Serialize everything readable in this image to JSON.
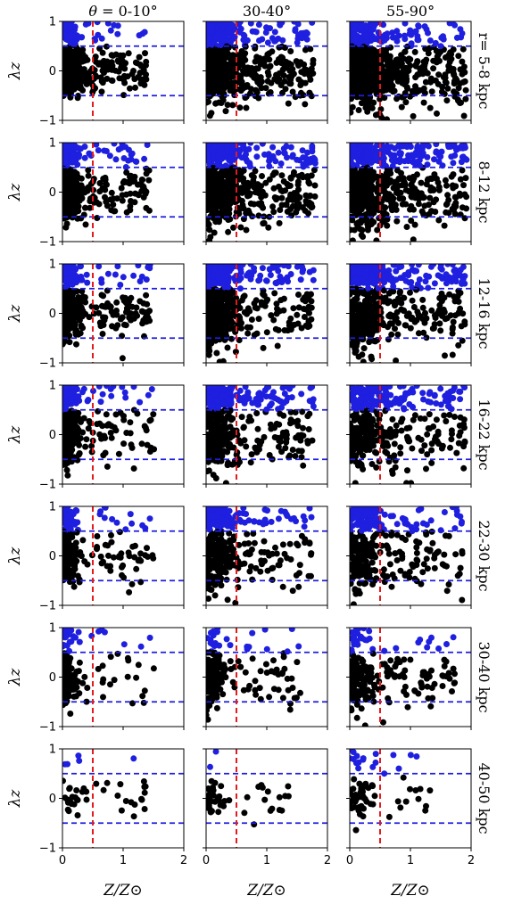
{
  "chart_data": {
    "type": "scatter",
    "grid": false,
    "columns": [
      {
        "title_prefix": "θ = ",
        "title": "0-10°"
      },
      {
        "title": "30-40°"
      },
      {
        "title": "55-90°"
      }
    ],
    "rows": [
      {
        "label": "r= 5-8 kpc"
      },
      {
        "label": "8-12 kpc"
      },
      {
        "label": "12-16 kpc"
      },
      {
        "label": "16-22 kpc"
      },
      {
        "label": "22-30 kpc"
      },
      {
        "label": "30-40 kpc"
      },
      {
        "label": "40-50 kpc"
      }
    ],
    "xlabel": "Z/Z⊙",
    "ylabel": "λz",
    "xlim": [
      0,
      2
    ],
    "ylim": [
      -1,
      1
    ],
    "xticks": [
      "0",
      "1",
      "2"
    ],
    "yticks": [
      "−1",
      "0",
      "1"
    ],
    "reference_lines": {
      "vertical_x": 0.5,
      "vertical_color": "#e41a1c",
      "horizontal_y": [
        0.5,
        -0.5
      ],
      "horizontal_color": "#1f1fe0"
    },
    "colors": {
      "disc": "#1f1fe0",
      "halo": "#000000",
      "threshold_lambda": 0.5
    },
    "panels": [
      {
        "row": 0,
        "col": 0,
        "n": 700,
        "ed": 0.22,
        "sd": 0.1,
        "spread": 0.35,
        "high": 0.15
      },
      {
        "row": 0,
        "col": 1,
        "n": 750,
        "ed": 0.45,
        "sd": 0.15,
        "spread": 0.55,
        "high": 0.2
      },
      {
        "row": 0,
        "col": 2,
        "n": 800,
        "ed": 0.55,
        "sd": 0.18,
        "spread": 0.6,
        "high": 0.1
      },
      {
        "row": 1,
        "col": 0,
        "n": 650,
        "ed": 0.22,
        "sd": 0.1,
        "spread": 0.4,
        "high": 0.2
      },
      {
        "row": 1,
        "col": 1,
        "n": 700,
        "ed": 0.45,
        "sd": 0.15,
        "spread": 0.55,
        "high": 0.25
      },
      {
        "row": 1,
        "col": 2,
        "n": 650,
        "ed": 0.55,
        "sd": 0.2,
        "spread": 0.6,
        "high": 0.25
      },
      {
        "row": 2,
        "col": 0,
        "n": 550,
        "ed": 0.2,
        "sd": 0.1,
        "spread": 0.4,
        "high": 0.25
      },
      {
        "row": 2,
        "col": 1,
        "n": 600,
        "ed": 0.4,
        "sd": 0.15,
        "spread": 0.55,
        "high": 0.3
      },
      {
        "row": 2,
        "col": 2,
        "n": 550,
        "ed": 0.5,
        "sd": 0.18,
        "spread": 0.6,
        "high": 0.3
      },
      {
        "row": 3,
        "col": 0,
        "n": 450,
        "ed": 0.18,
        "sd": 0.1,
        "spread": 0.45,
        "high": 0.25
      },
      {
        "row": 3,
        "col": 1,
        "n": 500,
        "ed": 0.4,
        "sd": 0.15,
        "spread": 0.55,
        "high": 0.3
      },
      {
        "row": 3,
        "col": 2,
        "n": 420,
        "ed": 0.5,
        "sd": 0.18,
        "spread": 0.6,
        "high": 0.3
      },
      {
        "row": 4,
        "col": 0,
        "n": 300,
        "ed": 0.18,
        "sd": 0.12,
        "spread": 0.45,
        "high": 0.2
      },
      {
        "row": 4,
        "col": 1,
        "n": 380,
        "ed": 0.4,
        "sd": 0.15,
        "spread": 0.55,
        "high": 0.3
      },
      {
        "row": 4,
        "col": 2,
        "n": 320,
        "ed": 0.45,
        "sd": 0.18,
        "spread": 0.6,
        "high": 0.25
      },
      {
        "row": 5,
        "col": 0,
        "n": 150,
        "ed": 0.2,
        "sd": 0.15,
        "spread": 0.45,
        "high": 0.12
      },
      {
        "row": 5,
        "col": 1,
        "n": 200,
        "ed": 0.25,
        "sd": 0.15,
        "spread": 0.5,
        "high": 0.08
      },
      {
        "row": 5,
        "col": 2,
        "n": 230,
        "ed": 0.35,
        "sd": 0.18,
        "spread": 0.55,
        "high": 0.12
      },
      {
        "row": 6,
        "col": 0,
        "n": 45,
        "ed": 0.3,
        "sd": 0.2,
        "spread": 0.35,
        "high": 0.1
      },
      {
        "row": 6,
        "col": 1,
        "n": 50,
        "ed": 0.25,
        "sd": 0.15,
        "spread": 0.35,
        "high": 0.02
      },
      {
        "row": 6,
        "col": 2,
        "n": 80,
        "ed": 0.3,
        "sd": 0.15,
        "spread": 0.3,
        "high": 0.15
      }
    ]
  }
}
